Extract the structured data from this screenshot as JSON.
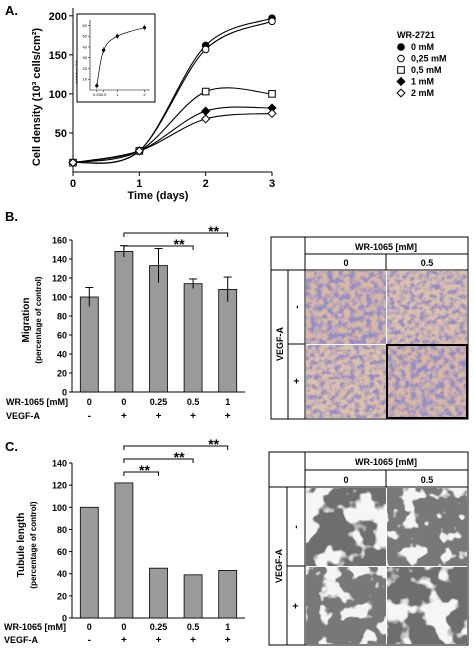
{
  "panels": {
    "A": {
      "label": "A."
    },
    "B": {
      "label": "B."
    },
    "C": {
      "label": "C."
    }
  },
  "micrographs": {
    "B": {
      "header": "WR-1065 [mM]",
      "cols": [
        "0",
        "0.5"
      ],
      "row_title": "VEGF-A",
      "rows": [
        "-",
        "+"
      ]
    },
    "C": {
      "header": "WR-1065 [mM]",
      "cols": [
        "0",
        "0.5"
      ],
      "row_title": "VEGF-A",
      "rows": [
        "-",
        "+"
      ]
    }
  },
  "chart_data": [
    {
      "type": "line",
      "panel": "A",
      "xlabel": "Time (days)",
      "ylabel": "Cell density (10³ cells/cm²)",
      "x": [
        0,
        1,
        2,
        3
      ],
      "xticks": [
        "0",
        "1",
        "2",
        "3"
      ],
      "yticks": [
        50,
        100,
        150,
        200
      ],
      "ylim": [
        0,
        210
      ],
      "legend_title": "WR-2721",
      "legend_position": "top-right",
      "series": [
        {
          "name": "0 mM",
          "marker": "circle-filled",
          "values": [
            12,
            27,
            162,
            197
          ]
        },
        {
          "name": "0,25 mM",
          "marker": "circle-open",
          "values": [
            12,
            27,
            157,
            193
          ]
        },
        {
          "name": "0,5 mM",
          "marker": "square-open",
          "values": [
            12,
            27,
            103,
            100
          ]
        },
        {
          "name": "1 mM",
          "marker": "diamond-filled",
          "values": [
            12,
            27,
            78,
            82
          ]
        },
        {
          "name": "2 mM",
          "marker": "diamond-open",
          "values": [
            12,
            27,
            68,
            75
          ]
        }
      ],
      "inset": {
        "type": "line",
        "xlabel": "WR2721 [mM]",
        "ylabel": "Inhibition (%)",
        "x": [
          0.25,
          0.5,
          1,
          2
        ],
        "xticks": [
          "0.25",
          "0.5",
          "1",
          "2"
        ],
        "yticks": [
          10,
          20,
          30,
          40,
          50,
          60
        ],
        "ylim": [
          0,
          65
        ],
        "values": [
          4,
          37,
          50,
          58
        ]
      }
    },
    {
      "type": "bar",
      "panel": "B",
      "ylabel": "Migration",
      "ylabel2": "(percentage of control)",
      "ylim": [
        0,
        160
      ],
      "yticks": [
        0,
        20,
        40,
        60,
        80,
        100,
        120,
        140,
        160
      ],
      "values": [
        100,
        148,
        133,
        114,
        108
      ],
      "errors": [
        10,
        6,
        18,
        5,
        13
      ],
      "row1_label": "WR-1065 [mM]",
      "row1": [
        "0",
        "0",
        "0.25",
        "0.5",
        "1"
      ],
      "row2_label": "VEGF-A",
      "row2": [
        "-",
        "+",
        "+",
        "+",
        "+"
      ],
      "significance": [
        {
          "from": 1,
          "to": 3,
          "label": "**"
        },
        {
          "from": 1,
          "to": 4,
          "label": "**"
        }
      ]
    },
    {
      "type": "bar",
      "panel": "C",
      "ylabel": "Tubule length",
      "ylabel2": "(percentage of control)",
      "ylim": [
        0,
        140
      ],
      "yticks": [
        0,
        20,
        40,
        60,
        80,
        100,
        120,
        140
      ],
      "values": [
        100,
        122,
        45,
        39,
        43
      ],
      "errors": [
        0,
        0,
        0,
        0,
        0
      ],
      "row1_label": "WR-1065 [mM]",
      "row1": [
        "0",
        "0",
        "0.25",
        "0.5",
        "1"
      ],
      "row2_label": "VEGF-A",
      "row2": [
        "-",
        "+",
        "+",
        "+",
        "+"
      ],
      "significance": [
        {
          "from": 1,
          "to": 2,
          "label": "**"
        },
        {
          "from": 1,
          "to": 3,
          "label": "**"
        },
        {
          "from": 1,
          "to": 4,
          "label": "**"
        }
      ]
    }
  ]
}
